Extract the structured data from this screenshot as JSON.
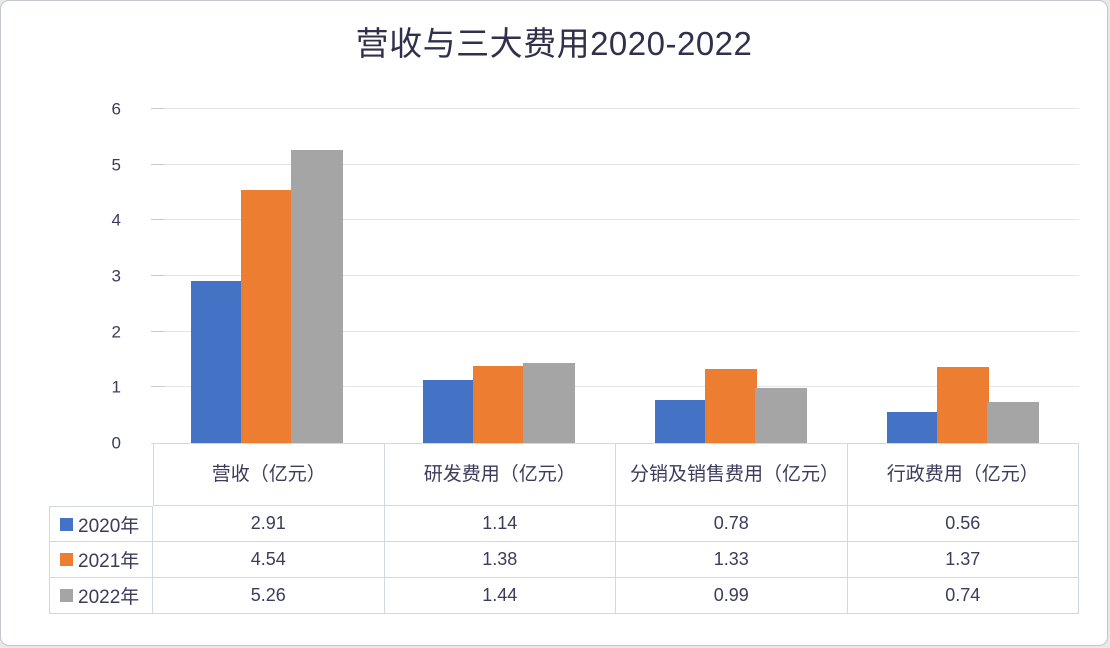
{
  "chart_data": {
    "type": "bar",
    "title": "营收与三大费用2020-2022",
    "categories": [
      "营收（亿元）",
      "研发费用（亿元）",
      "分销及销售费用（亿元）",
      "行政费用（亿元）"
    ],
    "series": [
      {
        "name": "2020年",
        "color": "#4472C4",
        "values": [
          2.91,
          1.14,
          0.78,
          0.56
        ]
      },
      {
        "name": "2021年",
        "color": "#ED7D31",
        "values": [
          4.54,
          1.38,
          1.33,
          1.37
        ]
      },
      {
        "name": "2022年",
        "color": "#A5A5A5",
        "values": [
          5.26,
          1.44,
          0.99,
          0.74
        ]
      }
    ],
    "ylim": [
      0,
      6
    ],
    "yticks": [
      0,
      1,
      2,
      3,
      4,
      5,
      6
    ],
    "grid": true,
    "legend_position": "table-left",
    "value_decimals": 2
  },
  "colors": {
    "title_text": "#30304d",
    "axis_text": "#3b3b5c",
    "gridline": "#e4e5ea",
    "table_border": "#d3d7e0",
    "card_background": "#ffffff"
  }
}
